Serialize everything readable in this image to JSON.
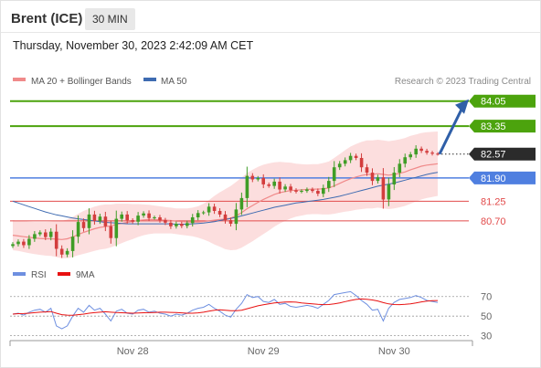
{
  "header": {
    "instrument": "Brent (ICE)",
    "interval": "30 MIN",
    "datetime": "Thursday, November 30, 2023 2:42:09 AM CET",
    "credit": "Research © 2023 Trading Central"
  },
  "colors": {
    "support": "#4f7fe0",
    "resistance_green": "#4ca30d",
    "intraday_level": "#e24b4b",
    "current_price": "#2b2b2b",
    "candle_up": "#3f9d26",
    "candle_down": "#d33d3d",
    "bollinger_fill": "#fbd3d3",
    "ma20": "#f08a8a",
    "ma50": "#3e6bb1",
    "rsi": "#6e8fe0",
    "rsi_ma": "#e81010",
    "arrow": "#2f5fa8"
  },
  "chart_data": [
    {
      "type": "candlestick",
      "title": "",
      "legend": [
        {
          "name": "MA 20 + Bollinger Bands",
          "color": "#f08a8a"
        },
        {
          "name": "MA 50",
          "color": "#3e6bb1"
        }
      ],
      "x_ticks": [
        {
          "label": "Nov 28",
          "index": 22
        },
        {
          "label": "Nov 29",
          "index": 46
        },
        {
          "label": "Nov 30",
          "index": 70
        }
      ],
      "ylim": [
        79.6,
        84.35
      ],
      "levels": [
        {
          "value": 84.05,
          "label": "84.05",
          "style": "green"
        },
        {
          "value": 83.35,
          "label": "83.35",
          "style": "green"
        },
        {
          "value": 82.57,
          "label": "82.57",
          "style": "current"
        },
        {
          "value": 81.9,
          "label": "81.90",
          "style": "blue"
        },
        {
          "value": 81.25,
          "label": "81.25",
          "style": "red"
        },
        {
          "value": 80.7,
          "label": "80.70",
          "style": "red"
        }
      ],
      "close": [
        80.05,
        80.12,
        80.02,
        80.2,
        80.33,
        80.38,
        80.25,
        80.4,
        79.92,
        79.76,
        79.86,
        80.26,
        80.67,
        80.5,
        80.88,
        80.7,
        80.82,
        80.55,
        80.22,
        80.76,
        80.88,
        80.72,
        80.68,
        80.85,
        80.91,
        80.78,
        80.8,
        80.72,
        80.65,
        80.55,
        80.62,
        80.56,
        80.64,
        80.8,
        80.92,
        80.94,
        81.1,
        80.98,
        80.88,
        80.72,
        80.62,
        81.02,
        81.34,
        81.96,
        81.86,
        81.9,
        81.72,
        81.68,
        81.8,
        81.58,
        81.66,
        81.56,
        81.52,
        81.54,
        81.58,
        81.54,
        81.46,
        81.62,
        81.82,
        82.2,
        82.3,
        82.4,
        82.52,
        82.46,
        82.2,
        82.05,
        81.82,
        81.92,
        81.3,
        81.72,
        82.05,
        82.3,
        82.48,
        82.56,
        82.72,
        82.66,
        82.61,
        82.58,
        82.57
      ],
      "ma20": [
        80.3,
        80.28,
        80.26,
        80.24,
        80.22,
        80.21,
        80.2,
        80.2,
        80.19,
        80.18,
        80.2,
        80.25,
        80.32,
        80.38,
        80.43,
        80.48,
        80.52,
        80.54,
        80.56,
        80.6,
        80.63,
        80.66,
        80.68,
        80.71,
        80.73,
        80.74,
        80.74,
        80.73,
        80.72,
        80.71,
        80.69,
        80.68,
        80.67,
        80.67,
        80.67,
        80.68,
        80.7,
        80.72,
        80.74,
        80.75,
        80.78,
        80.84,
        80.93,
        81.04,
        81.13,
        81.22,
        81.3,
        81.37,
        81.44,
        81.49,
        81.52,
        81.55,
        81.56,
        81.57,
        81.58,
        81.59,
        81.59,
        81.6,
        81.62,
        81.68,
        81.75,
        81.82,
        81.88,
        81.93,
        81.97,
        82.0,
        82.0,
        82.02,
        82.0,
        81.98,
        82.0,
        82.03,
        82.07,
        82.13,
        82.18,
        82.23,
        82.26,
        82.28,
        82.3
      ],
      "ma50": [
        81.25,
        81.2,
        81.15,
        81.1,
        81.05,
        81.0,
        80.95,
        80.91,
        80.87,
        80.84,
        80.81,
        80.78,
        80.76,
        80.74,
        80.72,
        80.7,
        80.68,
        80.66,
        80.65,
        80.64,
        80.63,
        80.62,
        80.62,
        80.62,
        80.62,
        80.62,
        80.62,
        80.62,
        80.62,
        80.62,
        80.61,
        80.61,
        80.61,
        80.62,
        80.63,
        80.64,
        80.66,
        80.68,
        80.71,
        80.74,
        80.77,
        80.8,
        80.84,
        80.88,
        80.92,
        80.96,
        81.0,
        81.04,
        81.08,
        81.11,
        81.14,
        81.17,
        81.2,
        81.22,
        81.24,
        81.26,
        81.28,
        81.3,
        81.33,
        81.36,
        81.39,
        81.43,
        81.47,
        81.51,
        81.55,
        81.59,
        81.63,
        81.67,
        81.7,
        81.73,
        81.76,
        81.8,
        81.84,
        81.88,
        81.92,
        81.96,
        82.0,
        82.03,
        82.06
      ],
      "bollinger_width": [
        0.42,
        0.42,
        0.43,
        0.44,
        0.45,
        0.46,
        0.47,
        0.48,
        0.5,
        0.52,
        0.54,
        0.56,
        0.58,
        0.6,
        0.61,
        0.62,
        0.62,
        0.62,
        0.6,
        0.58,
        0.55,
        0.52,
        0.49,
        0.46,
        0.43,
        0.41,
        0.39,
        0.38,
        0.37,
        0.36,
        0.36,
        0.37,
        0.38,
        0.4,
        0.44,
        0.5,
        0.58,
        0.68,
        0.76,
        0.84,
        0.9,
        0.95,
        0.98,
        1.0,
        1.0,
        0.99,
        0.97,
        0.94,
        0.9,
        0.86,
        0.82,
        0.78,
        0.74,
        0.72,
        0.7,
        0.7,
        0.7,
        0.72,
        0.74,
        0.78,
        0.82,
        0.86,
        0.9,
        0.92,
        0.94,
        0.95,
        0.95,
        0.95,
        0.95,
        0.95,
        0.95,
        0.95,
        0.95,
        0.95,
        0.94,
        0.93,
        0.92,
        0.91,
        0.9
      ]
    },
    {
      "type": "line",
      "title": "",
      "legend": [
        {
          "name": "RSI",
          "color": "#6e8fe0"
        },
        {
          "name": "9MA",
          "color": "#e81010"
        }
      ],
      "y_ticks": [
        70,
        50,
        30
      ],
      "ylim": [
        25,
        80
      ],
      "rsi": [
        52,
        53,
        51,
        54,
        56,
        57,
        54,
        58,
        40,
        37,
        40,
        50,
        58,
        54,
        61,
        56,
        58,
        52,
        45,
        55,
        57,
        53,
        52,
        56,
        57,
        54,
        55,
        53,
        52,
        50,
        52,
        51,
        53,
        56,
        58,
        59,
        62,
        58,
        55,
        51,
        49,
        57,
        63,
        72,
        69,
        70,
        65,
        64,
        67,
        62,
        63,
        60,
        59,
        60,
        61,
        60,
        58,
        62,
        66,
        72,
        73,
        74,
        75,
        71,
        66,
        62,
        56,
        57,
        45,
        58,
        64,
        67,
        68,
        69,
        71,
        69,
        66,
        65,
        64
      ],
      "ma9": [
        52,
        52.5,
        52.6,
        53,
        53.5,
        54,
        54.3,
        54.6,
        53,
        51.5,
        51,
        50.8,
        51.5,
        52,
        53,
        53.5,
        54,
        54.5,
        54,
        53.6,
        53.4,
        53.2,
        53,
        53.2,
        53.4,
        53.5,
        53.7,
        54,
        54,
        53.8,
        53.6,
        53.3,
        53,
        53,
        53.3,
        54,
        55,
        56,
        56.5,
        56,
        55.6,
        55.5,
        56,
        57.5,
        59,
        60.5,
        61.5,
        62.5,
        63.5,
        64,
        64.4,
        64.5,
        64.2,
        63.5,
        63,
        62.5,
        62,
        61.7,
        61.8,
        62.5,
        63.5,
        64.8,
        66,
        67,
        67.5,
        67.2,
        66.5,
        65.5,
        63.8,
        62.5,
        61.8,
        61.7,
        62,
        62.5,
        63.4,
        64.5,
        65.3,
        65.8,
        65.9
      ]
    }
  ]
}
